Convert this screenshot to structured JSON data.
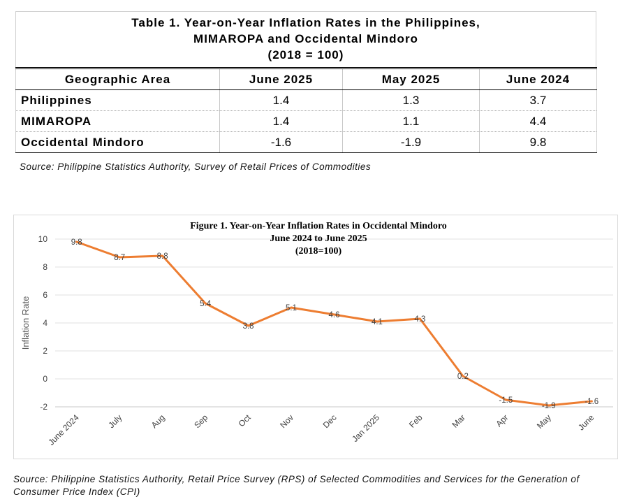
{
  "table": {
    "title_lines": [
      "Table 1. Year-on-Year Inflation Rates in the Philippines,",
      "MIMAROPA and Occidental Mindoro",
      "(2018 = 100)"
    ],
    "headers": [
      "Geographic Area",
      "June 2025",
      "May 2025",
      "June 2024"
    ],
    "rows": [
      [
        "Philippines",
        "1.4",
        "1.3",
        "3.7"
      ],
      [
        "MIMAROPA",
        "1.4",
        "1.1",
        "4.4"
      ],
      [
        "Occidental Mindoro",
        "-1.6",
        "-1.9",
        "9.8"
      ]
    ],
    "source": "Source: Philippine Statistics Authority, Survey of Retail Prices of Commodities"
  },
  "chart_data": {
    "type": "line",
    "title_lines": [
      "Figure 1. Year-on-Year Inflation Rates in Occidental Mindoro",
      "June 2024 to June 2025",
      "(2018=100)"
    ],
    "ylabel": "Inflation Rate",
    "xlabel": "",
    "categories": [
      "June 2024",
      "July",
      "Aug",
      "Sep",
      "Oct",
      "Nov",
      "Dec",
      "Jan  2025",
      "Feb",
      "Mar",
      "Apr",
      "May",
      "June"
    ],
    "series": [
      {
        "values": [
          9.8,
          8.7,
          8.8,
          5.4,
          3.8,
          5.1,
          4.6,
          4.1,
          4.3,
          0.2,
          -1.5,
          -1.9,
          -1.6
        ],
        "color": "#ED7D31"
      }
    ],
    "ylim": [
      -2,
      10
    ],
    "yticks": [
      -2,
      0,
      2,
      4,
      6,
      8,
      10
    ],
    "grid": true,
    "legend": "none"
  },
  "figure_source": "Source: Philippine Statistics Authority, Retail Price Survey (RPS) of Selected Commodities and Services for the Generation of Consumer Price Index (CPI)"
}
